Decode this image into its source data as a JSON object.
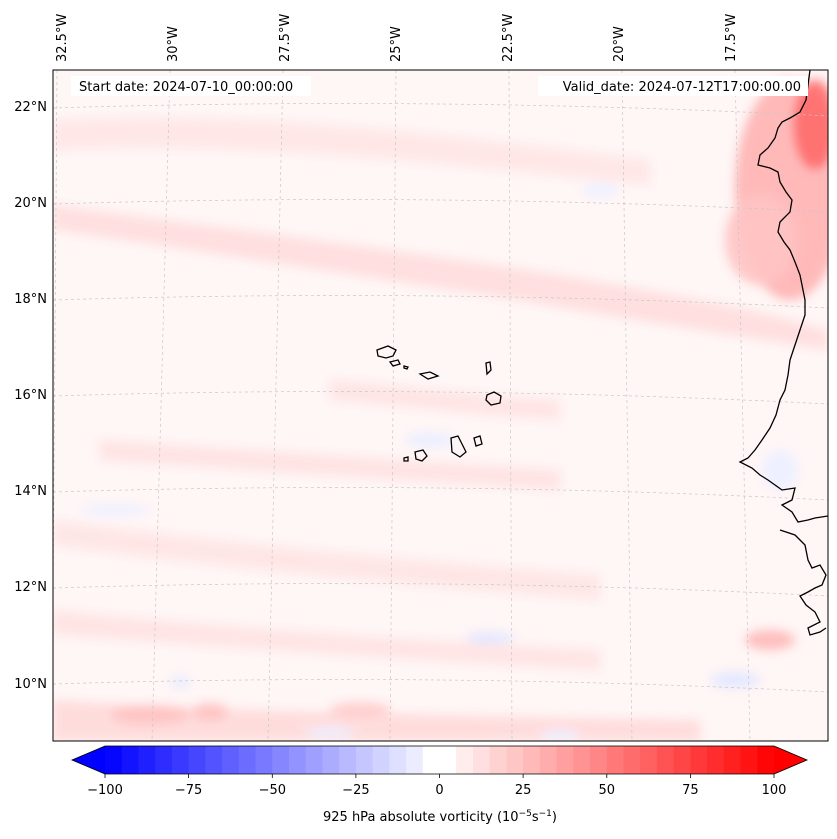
{
  "header": {
    "start_date": "Start date: 2024-07-10_00:00:00",
    "valid_date": "Valid_date: 2024-07-12T17:00:00.00"
  },
  "lon_labels": [
    "32.5°W",
    "30°W",
    "27.5°W",
    "25°W",
    "22.5°W",
    "20°W",
    "17.5°W"
  ],
  "lat_labels": [
    "22°N",
    "20°N",
    "18°N",
    "16°N",
    "14°N",
    "12°N",
    "10°N"
  ],
  "colorbar": {
    "ticks": [
      "−100",
      "−75",
      "−50",
      "−25",
      "0",
      "25",
      "50",
      "75",
      "100"
    ],
    "label": "925 hPa absolute vorticity (10",
    "label_exp1": "−5",
    "label_mid": "s",
    "label_exp2": "−1",
    "label_end": ")",
    "min_color": "#0000ff",
    "mid_color": "#ffffff",
    "max_color": "#ff0000"
  },
  "map": {
    "coastline_color": "#000000",
    "gridline_color": "#c8c8c8",
    "background_color": "#fff6f6"
  }
}
